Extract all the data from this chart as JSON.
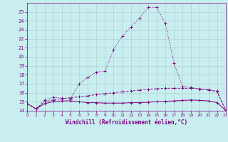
{
  "xlabel": "Windchill (Refroidissement éolien,°C)",
  "background_color": "#c8eef0",
  "grid_color": "#aacccc",
  "line_color": "#800080",
  "xlim": [
    0,
    23
  ],
  "ylim": [
    14,
    26
  ],
  "yticks": [
    14,
    15,
    16,
    17,
    18,
    19,
    20,
    21,
    22,
    23,
    24,
    25
  ],
  "xticks": [
    0,
    1,
    2,
    3,
    4,
    5,
    6,
    7,
    8,
    9,
    10,
    11,
    12,
    13,
    14,
    15,
    16,
    17,
    18,
    19,
    20,
    21,
    22,
    23
  ],
  "series1_x": [
    0,
    1,
    2,
    3,
    4,
    5,
    6,
    7,
    8,
    9,
    10,
    11,
    12,
    13,
    14,
    15,
    16,
    17,
    18,
    19,
    20,
    21,
    22,
    23
  ],
  "series1_y": [
    14.8,
    14.2,
    14.8,
    15.0,
    15.1,
    15.1,
    15.0,
    14.9,
    14.9,
    14.85,
    14.85,
    14.85,
    14.9,
    14.9,
    14.95,
    15.0,
    15.05,
    15.1,
    15.15,
    15.2,
    15.15,
    15.1,
    14.9,
    14.05
  ],
  "series2_x": [
    0,
    1,
    2,
    3,
    4,
    5,
    6,
    7,
    8,
    9,
    10,
    11,
    12,
    13,
    14,
    15,
    16,
    17,
    18,
    19,
    20,
    21,
    22,
    23
  ],
  "series2_y": [
    14.8,
    14.2,
    15.0,
    15.2,
    15.35,
    15.45,
    15.55,
    15.65,
    15.8,
    15.9,
    16.0,
    16.1,
    16.2,
    16.3,
    16.4,
    16.45,
    16.5,
    16.5,
    16.5,
    16.5,
    16.45,
    16.35,
    16.1,
    14.05
  ],
  "series3_x": [
    0,
    1,
    2,
    3,
    4,
    5,
    6,
    7,
    8,
    9,
    10,
    11,
    12,
    13,
    14,
    15,
    16,
    17,
    18,
    19,
    20,
    21,
    22,
    23
  ],
  "series3_y": [
    14.8,
    14.2,
    15.2,
    15.5,
    15.4,
    15.3,
    17.0,
    17.7,
    18.3,
    18.4,
    20.8,
    22.3,
    23.3,
    24.3,
    25.5,
    25.5,
    23.7,
    19.3,
    16.7,
    16.6,
    16.4,
    16.3,
    16.2,
    14.05
  ]
}
